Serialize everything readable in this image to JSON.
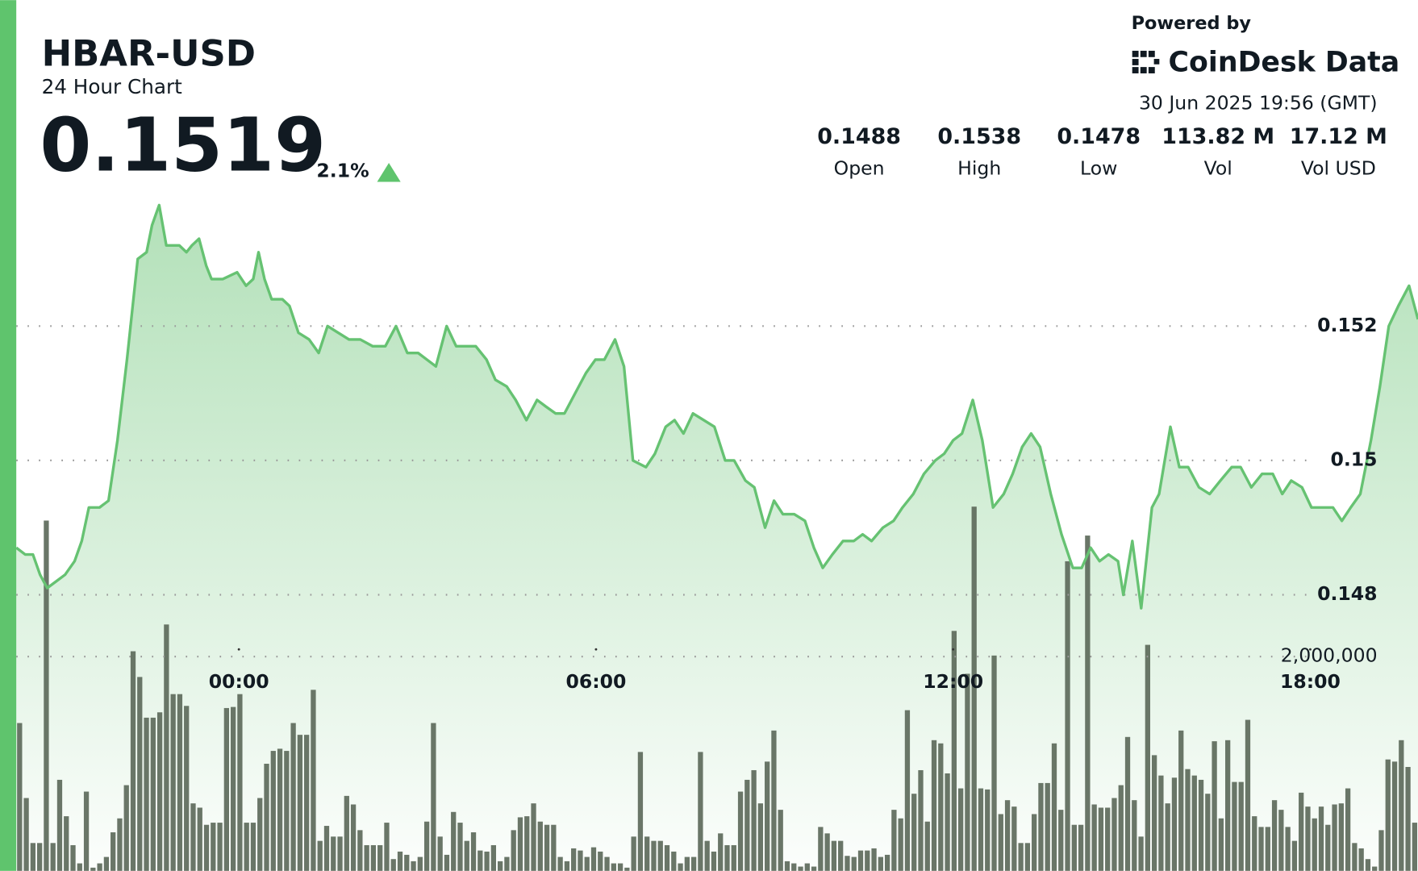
{
  "header": {
    "title": "HBAR-USD",
    "subtitle": "24 Hour Chart",
    "price": "0.1519",
    "change": "2.1%",
    "powered_by": "Powered by",
    "brand": "CoinDesk Data",
    "timestamp": "30 Jun 2025 19:56 (GMT)"
  },
  "stats": [
    {
      "value": "0.1488",
      "label": "Open"
    },
    {
      "value": "0.1538",
      "label": "High"
    },
    {
      "value": "0.1478",
      "label": "Low"
    },
    {
      "value": "113.82 M",
      "label": "Vol"
    },
    {
      "value": "17.12 M",
      "label": "Vol USD"
    }
  ],
  "chart_data": [
    {
      "type": "area",
      "color": "#66c272",
      "x": [
        -3.74,
        -3.59,
        -3.46,
        -3.34,
        -3.22,
        -3.07,
        -2.92,
        -2.76,
        -2.64,
        -2.52,
        -2.34,
        -2.19,
        -2.04,
        -1.88,
        -1.7,
        -1.55,
        -1.46,
        -1.34,
        -1.22,
        -1.09,
        -1.0,
        -0.88,
        -0.79,
        -0.67,
        -0.55,
        -0.46,
        -0.27,
        -0.03,
        0.12,
        0.24,
        0.33,
        0.43,
        0.55,
        0.73,
        0.85,
        1.0,
        1.18,
        1.34,
        1.49,
        1.67,
        1.85,
        2.04,
        2.25,
        2.46,
        2.64,
        2.83,
        3.01,
        3.16,
        3.31,
        3.49,
        3.65,
        3.8,
        3.98,
        4.16,
        4.31,
        4.5,
        4.65,
        4.83,
        5.01,
        5.16,
        5.32,
        5.47,
        5.65,
        5.83,
        5.99,
        6.14,
        6.32,
        6.47,
        6.62,
        6.84,
        6.99,
        7.17,
        7.32,
        7.47,
        7.63,
        7.81,
        7.99,
        8.17,
        8.32,
        8.51,
        8.66,
        8.84,
        8.99,
        9.14,
        9.33,
        9.51,
        9.66,
        9.81,
        9.97,
        10.15,
        10.33,
        10.48,
        10.63,
        10.82,
        11.0,
        11.15,
        11.33,
        11.51,
        11.7,
        11.85,
        12.0,
        12.15,
        12.33,
        12.49,
        12.67,
        12.85,
        13.0,
        13.16,
        13.31,
        13.46,
        13.64,
        13.82,
        14.01,
        14.16,
        14.31,
        14.46,
        14.61,
        14.77,
        14.86,
        15.01,
        15.16,
        15.34,
        15.46,
        15.65,
        15.8,
        15.95,
        16.13,
        16.31,
        16.49,
        16.68,
        16.83,
        17.01,
        17.19,
        17.37,
        17.53,
        17.68,
        17.86,
        18.02,
        18.2,
        18.38,
        18.53,
        18.68,
        18.84,
        19.02,
        19.17,
        19.32,
        19.48,
        19.66,
        19.81
      ],
      "values": [
        0.1487,
        0.1486,
        0.1486,
        0.1483,
        0.1481,
        0.1482,
        0.1483,
        0.1485,
        0.1488,
        0.1493,
        0.1493,
        0.1494,
        0.1503,
        0.1515,
        0.153,
        0.1531,
        0.1535,
        0.1538,
        0.1532,
        0.1532,
        0.1532,
        0.1531,
        0.1532,
        0.1533,
        0.1529,
        0.1527,
        0.1527,
        0.1528,
        0.1526,
        0.1527,
        0.1531,
        0.1527,
        0.1524,
        0.1524,
        0.1523,
        0.1519,
        0.1518,
        0.1516,
        0.152,
        0.1519,
        0.1518,
        0.1518,
        0.1517,
        0.1517,
        0.152,
        0.1516,
        0.1516,
        0.1515,
        0.1514,
        0.152,
        0.1517,
        0.1517,
        0.1517,
        0.1515,
        0.1512,
        0.1511,
        0.1509,
        0.1506,
        0.1509,
        0.1508,
        0.1507,
        0.1507,
        0.151,
        0.1513,
        0.1515,
        0.1515,
        0.1518,
        0.1514,
        0.15,
        0.1499,
        0.1501,
        0.1505,
        0.1506,
        0.1504,
        0.1507,
        0.1506,
        0.1505,
        0.15,
        0.15,
        0.1497,
        0.1496,
        0.149,
        0.1494,
        0.1492,
        0.1492,
        0.1491,
        0.1487,
        0.1484,
        0.1486,
        0.1488,
        0.1488,
        0.1489,
        0.1488,
        0.149,
        0.1491,
        0.1493,
        0.1495,
        0.1498,
        0.15,
        0.1501,
        0.1503,
        0.1504,
        0.1509,
        0.1503,
        0.1493,
        0.1495,
        0.1498,
        0.1502,
        0.1504,
        0.1502,
        0.1495,
        0.1489,
        0.1484,
        0.1484,
        0.1487,
        0.1485,
        0.1486,
        0.1485,
        0.148,
        0.1488,
        0.1478,
        0.1493,
        0.1495,
        0.1505,
        0.1499,
        0.1499,
        0.1496,
        0.1495,
        0.1497,
        0.1499,
        0.1499,
        0.1496,
        0.1498,
        0.1498,
        0.1495,
        0.1497,
        0.1496,
        0.1493,
        0.1493,
        0.1493,
        0.1491,
        0.1493,
        0.1495,
        0.1503,
        0.1511,
        0.152,
        0.1523,
        0.1526,
        0.1521
      ],
      "xlim": [
        -3.74,
        19.81
      ],
      "ylim": [
        0.14389,
        0.15416
      ],
      "xticks": [
        {
          "value": 0,
          "label": "00:00"
        },
        {
          "value": 6,
          "label": "06:00"
        },
        {
          "value": 12,
          "label": "12:00"
        },
        {
          "value": 18,
          "label": "18:00"
        }
      ],
      "yticks": [
        0.148,
        0.15,
        0.152
      ],
      "grid": true
    },
    {
      "type": "bar",
      "color": "#5d6a5b",
      "categories": [
        null,
        null,
        null,
        null,
        null,
        null,
        null,
        null,
        null,
        null,
        null,
        null,
        null,
        null,
        null,
        null,
        null,
        null,
        null,
        null,
        null,
        null,
        null,
        null,
        null,
        null,
        null,
        null,
        null,
        null,
        null,
        null,
        null,
        null,
        null,
        null,
        null,
        null,
        null,
        null,
        null,
        null,
        null,
        null,
        null,
        null,
        null,
        null,
        null,
        null,
        null,
        null,
        null,
        null,
        null,
        null,
        null,
        null,
        null,
        null,
        null,
        null,
        null,
        null,
        null,
        null,
        null,
        null,
        null,
        null,
        null,
        null,
        null,
        null,
        null,
        null,
        null,
        null,
        null,
        null,
        null,
        null,
        null,
        null,
        null,
        null,
        null,
        null,
        null,
        null,
        null,
        null,
        null,
        null,
        null,
        null,
        null,
        null,
        null,
        null,
        null,
        null,
        null,
        null,
        null,
        null,
        null,
        null,
        null,
        null,
        null,
        null,
        null,
        null,
        null,
        null,
        null,
        null,
        null,
        null,
        null,
        null,
        null,
        null,
        null,
        null,
        null,
        null,
        null,
        null,
        null,
        null,
        null,
        null,
        null,
        null,
        null,
        null,
        null,
        null,
        null,
        null,
        null,
        null,
        null,
        null,
        null,
        null,
        null,
        null,
        null,
        null,
        null,
        null,
        null,
        null,
        null,
        null,
        null,
        null,
        null,
        null,
        null,
        null,
        null,
        null,
        null,
        null,
        null,
        null,
        null,
        null,
        null,
        null,
        null,
        null,
        null,
        null,
        null,
        null,
        null,
        null,
        null,
        null,
        null,
        null,
        null,
        null,
        null,
        null,
        null,
        null,
        null,
        null,
        null,
        null,
        null,
        null,
        null,
        null,
        null,
        null,
        null,
        null,
        null,
        null,
        null,
        null,
        null,
        null
      ],
      "values": [
        1380000,
        680000,
        260000,
        260000,
        3270000,
        260000,
        850000,
        510000,
        240000,
        70000,
        740000,
        30000,
        70000,
        130000,
        360000,
        490000,
        800000,
        2050000,
        1810000,
        1430000,
        1430000,
        1480000,
        2300000,
        1650000,
        1650000,
        1540000,
        630000,
        590000,
        430000,
        450000,
        450000,
        1520000,
        1530000,
        1650000,
        450000,
        450000,
        680000,
        1000000,
        1120000,
        1140000,
        1120000,
        1380000,
        1270000,
        1270000,
        1690000,
        280000,
        420000,
        320000,
        320000,
        700000,
        620000,
        380000,
        240000,
        240000,
        240000,
        450000,
        110000,
        180000,
        150000,
        90000,
        130000,
        460000,
        1380000,
        320000,
        150000,
        550000,
        450000,
        280000,
        360000,
        190000,
        180000,
        240000,
        90000,
        130000,
        380000,
        500000,
        510000,
        630000,
        460000,
        430000,
        430000,
        130000,
        90000,
        210000,
        190000,
        130000,
        220000,
        180000,
        130000,
        70000,
        70000,
        30000,
        320000,
        1110000,
        320000,
        280000,
        280000,
        240000,
        180000,
        70000,
        130000,
        130000,
        1110000,
        280000,
        180000,
        350000,
        240000,
        240000,
        740000,
        850000,
        940000,
        630000,
        1020000,
        1310000,
        570000,
        90000,
        70000,
        40000,
        70000,
        40000,
        410000,
        350000,
        280000,
        280000,
        140000,
        130000,
        190000,
        190000,
        210000,
        130000,
        150000,
        570000,
        490000,
        1500000,
        720000,
        940000,
        460000,
        1220000,
        1190000,
        910000,
        2240000,
        770000,
        1840000,
        3400000,
        770000,
        760000,
        2010000,
        530000,
        660000,
        600000,
        260000,
        260000,
        530000,
        820000,
        820000,
        1190000,
        570000,
        2890000,
        430000,
        430000,
        3130000,
        620000,
        590000,
        590000,
        680000,
        800000,
        1250000,
        660000,
        320000,
        2110000,
        1080000,
        890000,
        630000,
        870000,
        1310000,
        950000,
        890000,
        850000,
        720000,
        1210000,
        490000,
        1220000,
        830000,
        830000,
        1410000,
        510000,
        410000,
        410000,
        660000,
        570000,
        410000,
        280000,
        730000,
        600000,
        490000,
        600000,
        430000,
        620000,
        630000,
        770000,
        260000,
        210000,
        110000,
        40000,
        380000,
        1040000,
        1020000,
        1220000,
        970000,
        450000
      ],
      "ylim": [
        0,
        6440000
      ],
      "yticks": [
        {
          "value": 2000000,
          "label": "2,000,000"
        }
      ],
      "grid": true
    }
  ]
}
